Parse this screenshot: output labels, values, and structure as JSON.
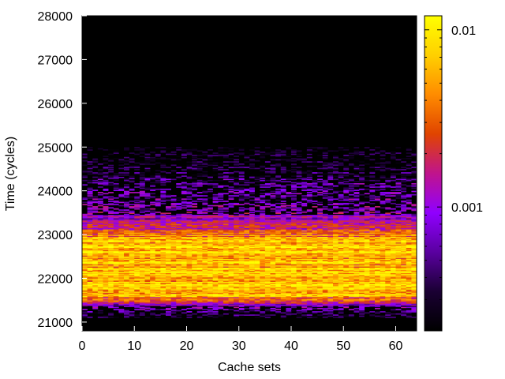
{
  "chart_data": {
    "type": "heatmap",
    "title": "",
    "xlabel": "Cache sets",
    "ylabel": "Time (cycles)",
    "xlim": [
      0,
      64
    ],
    "ylim": [
      20800,
      28000
    ],
    "x_ticks": [
      0,
      10,
      20,
      30,
      40,
      50,
      60
    ],
    "y_ticks": [
      21000,
      22000,
      23000,
      24000,
      25000,
      26000,
      27000,
      28000
    ],
    "x_tick_labels": [
      "0",
      "10",
      "20",
      "30",
      "40",
      "50",
      "60"
    ],
    "y_tick_labels": [
      "21000",
      "22000",
      "23000",
      "24000",
      "25000",
      "26000",
      "27000",
      "28000"
    ],
    "colorbar": {
      "scale": "log",
      "range": [
        0.0002,
        0.012
      ],
      "ticks": [
        0.01,
        0.001
      ],
      "tick_labels": [
        "0.01",
        "0.001"
      ],
      "colormap": [
        "#000000",
        "#1a0033",
        "#5a00a0",
        "#9000ff",
        "#c0148c",
        "#e04400",
        "#ff8c00",
        "#ffd000",
        "#ffff00"
      ]
    },
    "time_profile": [
      {
        "t": 21100,
        "value": 0.0003
      },
      {
        "t": 21200,
        "value": 0.0004
      },
      {
        "t": 21400,
        "value": 0.0012
      },
      {
        "t": 21600,
        "value": 0.006
      },
      {
        "t": 21800,
        "value": 0.007
      },
      {
        "t": 22000,
        "value": 0.008
      },
      {
        "t": 22100,
        "value": 0.01
      },
      {
        "t": 22300,
        "value": 0.006
      },
      {
        "t": 22500,
        "value": 0.008
      },
      {
        "t": 22700,
        "value": 0.009
      },
      {
        "t": 22900,
        "value": 0.006
      },
      {
        "t": 23000,
        "value": 0.004
      },
      {
        "t": 23200,
        "value": 0.0015
      },
      {
        "t": 23500,
        "value": 0.0009
      },
      {
        "t": 23800,
        "value": 0.0007
      },
      {
        "t": 24100,
        "value": 0.0006
      },
      {
        "t": 24400,
        "value": 0.0004
      },
      {
        "t": 24700,
        "value": 0.0003
      },
      {
        "t": 25000,
        "value": 0.0002
      }
    ]
  }
}
